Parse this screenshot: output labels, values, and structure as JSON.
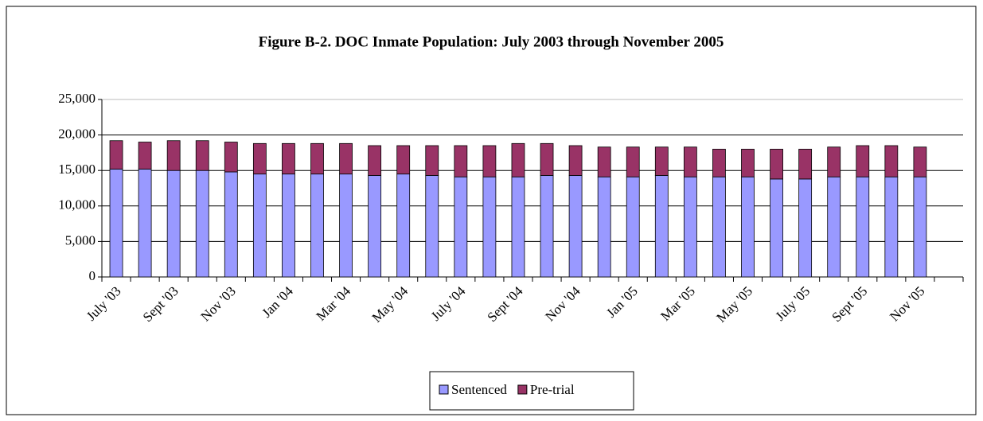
{
  "chart_data": {
    "type": "bar",
    "stacked": true,
    "title": "Figure B-2.  DOC Inmate Population: July 2003 through November 2005",
    "categories": [
      "July '03",
      null,
      "Sept '03",
      null,
      "Nov '03",
      null,
      "Jan '04",
      null,
      "Mar '04",
      null,
      "May '04",
      null,
      "July '04",
      null,
      "Sept '04",
      null,
      "Nov '04",
      null,
      "Jan '05",
      null,
      "Mar '05",
      null,
      "May '05",
      null,
      "July '05",
      null,
      "Sept '05",
      null,
      "Nov '05",
      null
    ],
    "series": [
      {
        "name": "Sentenced",
        "color": "#9999ff",
        "values": [
          15200,
          15200,
          15000,
          15000,
          14800,
          14500,
          14500,
          14500,
          14500,
          14300,
          14500,
          14300,
          14100,
          14100,
          14100,
          14300,
          14300,
          14100,
          14100,
          14300,
          14100,
          14100,
          14100,
          13800,
          13800,
          14100,
          14100,
          14100,
          14100,
          null
        ]
      },
      {
        "name": "Pre-trial",
        "color": "#993366",
        "values": [
          4000,
          3800,
          4200,
          4200,
          4200,
          4300,
          4300,
          4300,
          4300,
          4200,
          4000,
          4200,
          4400,
          4400,
          4700,
          4500,
          4200,
          4200,
          4200,
          4000,
          4200,
          3900,
          3900,
          4200,
          4200,
          4200,
          4400,
          4400,
          4200,
          null
        ]
      }
    ],
    "ylim": [
      0,
      25000
    ],
    "yticks": [
      0,
      {
        "value": 5000,
        "label": "5,000"
      },
      {
        "value": 10000,
        "label": "10,000"
      },
      {
        "value": 15000,
        "label": "15,000"
      },
      {
        "value": 20000,
        "label": "20,000"
      },
      {
        "value": 25000,
        "label": "25,000"
      }
    ],
    "grid": true,
    "legend": "bottom"
  }
}
